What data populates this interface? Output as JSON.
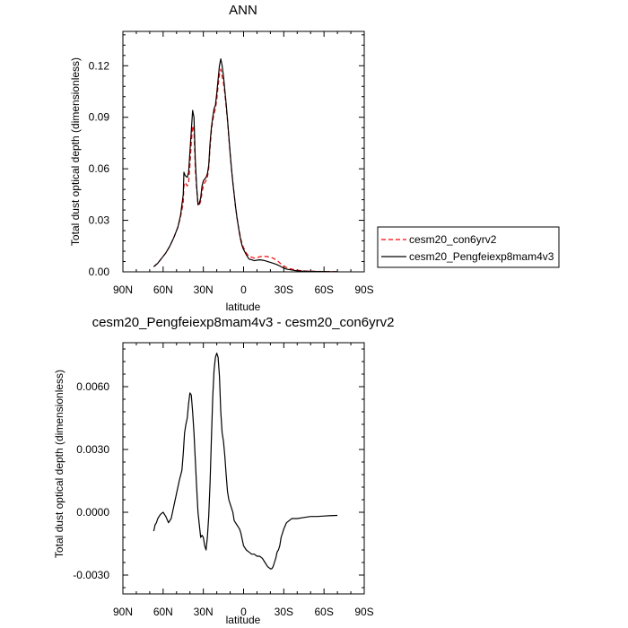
{
  "chart_data": [
    {
      "type": "line",
      "title": "ANN",
      "xlabel": "latitude",
      "ylabel": "Total dust optical depth (dimensionless)",
      "xlim": [
        90,
        -90
      ],
      "ylim": [
        0.0,
        0.14
      ],
      "x_ticks": [
        90,
        60,
        30,
        0,
        -30,
        -60,
        -90
      ],
      "x_tick_labels": [
        "90N",
        "60N",
        "30N",
        "0",
        "30S",
        "60S",
        "90S"
      ],
      "y_ticks": [
        0.0,
        0.03,
        0.06,
        0.09,
        0.12
      ],
      "y_tick_labels": [
        "0.00",
        "0.03",
        "0.06",
        "0.09",
        "0.12"
      ],
      "legend_position": "right",
      "series": [
        {
          "name": "cesm20_con6yrv2",
          "color": "#ff0000",
          "dash": "dashed",
          "x": [
            67,
            64,
            61,
            58,
            55,
            52,
            49,
            47,
            45,
            44.5,
            43.5,
            42,
            41,
            40,
            39,
            38,
            37,
            36,
            35,
            34,
            33,
            32,
            31,
            30,
            29,
            28,
            27,
            26,
            25,
            24,
            23,
            22,
            21,
            20,
            19,
            18,
            17,
            16,
            15,
            14,
            13,
            12,
            11,
            10,
            9,
            8,
            7,
            6,
            5,
            4,
            3,
            2,
            1,
            0,
            -2,
            -4,
            -6,
            -8,
            -10,
            -12,
            -14,
            -16,
            -18,
            -20,
            -22,
            -24,
            -26,
            -28,
            -30,
            -32,
            -35,
            -38,
            -42,
            -46,
            -50,
            -55,
            -60,
            -65,
            -70
          ],
          "y": [
            0.003,
            0.005,
            0.008,
            0.011,
            0.015,
            0.02,
            0.026,
            0.032,
            0.04,
            0.05,
            0.052,
            0.05,
            0.052,
            0.062,
            0.075,
            0.085,
            0.082,
            0.06,
            0.048,
            0.04,
            0.039,
            0.041,
            0.046,
            0.05,
            0.052,
            0.053,
            0.055,
            0.06,
            0.072,
            0.082,
            0.088,
            0.092,
            0.095,
            0.1,
            0.108,
            0.115,
            0.118,
            0.114,
            0.11,
            0.104,
            0.096,
            0.088,
            0.078,
            0.068,
            0.06,
            0.052,
            0.045,
            0.038,
            0.032,
            0.027,
            0.023,
            0.019,
            0.016,
            0.014,
            0.011,
            0.009,
            0.0085,
            0.008,
            0.0082,
            0.0088,
            0.009,
            0.009,
            0.0088,
            0.0085,
            0.008,
            0.007,
            0.006,
            0.0045,
            0.0035,
            0.0025,
            0.0018,
            0.0012,
            0.0008,
            0.0005,
            0.0004,
            0.0003,
            0.0002,
            0.0002,
            0.0001
          ]
        },
        {
          "name": "cesm20_Pengfeiexp8mam4v3",
          "color": "#000000",
          "dash": "solid",
          "x": [
            67,
            64,
            61,
            58,
            55,
            52,
            49,
            47,
            45,
            44.5,
            43.5,
            42,
            41,
            40,
            39,
            38,
            37,
            36,
            35,
            34,
            33,
            32,
            31,
            30,
            29,
            28,
            27,
            26,
            25,
            24,
            23,
            22,
            21,
            20,
            19,
            18,
            17,
            16,
            15,
            14,
            13,
            12,
            11,
            10,
            9,
            8,
            7,
            6,
            5,
            4,
            3,
            2,
            1,
            0,
            -2,
            -4,
            -6,
            -8,
            -10,
            -12,
            -14,
            -16,
            -18,
            -20,
            -22,
            -24,
            -26,
            -28,
            -30,
            -32,
            -35,
            -38,
            -42,
            -46,
            -50,
            -55,
            -60,
            -65,
            -70
          ],
          "y": [
            0.003,
            0.005,
            0.008,
            0.011,
            0.015,
            0.02,
            0.026,
            0.033,
            0.045,
            0.058,
            0.056,
            0.055,
            0.058,
            0.07,
            0.082,
            0.094,
            0.09,
            0.065,
            0.05,
            0.039,
            0.04,
            0.043,
            0.05,
            0.053,
            0.054,
            0.055,
            0.057,
            0.062,
            0.075,
            0.084,
            0.09,
            0.095,
            0.097,
            0.104,
            0.112,
            0.12,
            0.124,
            0.12,
            0.114,
            0.106,
            0.098,
            0.089,
            0.079,
            0.069,
            0.06,
            0.052,
            0.045,
            0.038,
            0.032,
            0.027,
            0.022,
            0.018,
            0.015,
            0.013,
            0.01,
            0.0075,
            0.007,
            0.0065,
            0.0068,
            0.007,
            0.0068,
            0.0065,
            0.006,
            0.0055,
            0.005,
            0.0045,
            0.0038,
            0.003,
            0.0022,
            0.0016,
            0.0012,
            0.0008,
            0.0005,
            0.0004,
            0.0003,
            0.0002,
            0.0002,
            0.0001,
            0.0001
          ]
        }
      ]
    },
    {
      "type": "line",
      "title": "cesm20_Pengfeiexp8mam4v3 - cesm20_con6yrv2",
      "xlabel": "latitude",
      "ylabel": "Total dust optical depth (dimensionless)",
      "xlim": [
        90,
        -90
      ],
      "ylim": [
        -0.0039,
        0.0081
      ],
      "x_ticks": [
        90,
        60,
        30,
        0,
        -30,
        -60,
        -90
      ],
      "x_tick_labels": [
        "90N",
        "60N",
        "30N",
        "0",
        "30S",
        "60S",
        "90S"
      ],
      "y_ticks": [
        -0.003,
        0.0,
        0.003,
        0.006
      ],
      "y_tick_labels": [
        "-0.0030",
        "0.0000",
        "0.0030",
        "0.0060"
      ],
      "series": [
        {
          "color": "#000000",
          "dash": "solid",
          "x": [
            67,
            66,
            65,
            64,
            62,
            60,
            58,
            56,
            54,
            52,
            50,
            48,
            46,
            45,
            44,
            43,
            42,
            41,
            40,
            39,
            38,
            37,
            36,
            35,
            34,
            33,
            32,
            31,
            30,
            29,
            28,
            27,
            26,
            25,
            24,
            23,
            22,
            21,
            20,
            19,
            18,
            17,
            16,
            15,
            14,
            13,
            12,
            11,
            10,
            9,
            8,
            7,
            6,
            5,
            4,
            3,
            2,
            1,
            0,
            -2,
            -4,
            -6,
            -8,
            -10,
            -12,
            -14,
            -16,
            -18,
            -20,
            -21,
            -22,
            -23,
            -24,
            -25,
            -26,
            -27,
            -28,
            -30,
            -32,
            -34,
            -36,
            -40,
            -45,
            -50,
            -55,
            -60,
            -65,
            -70
          ],
          "y": [
            -0.0009,
            -0.0006,
            -0.0005,
            -0.0003,
            -0.0001,
            0.0,
            -0.0002,
            -0.0005,
            -0.0003,
            0.0003,
            0.0009,
            0.0015,
            0.002,
            0.0028,
            0.0038,
            0.0042,
            0.0045,
            0.0052,
            0.0057,
            0.0056,
            0.0048,
            0.0038,
            0.0025,
            0.0012,
            0.0,
            -0.0006,
            -0.0012,
            -0.0011,
            -0.0012,
            -0.0016,
            -0.0018,
            -0.0012,
            -0.0002,
            0.0014,
            0.0035,
            0.0055,
            0.0068,
            0.0074,
            0.0076,
            0.0074,
            0.0065,
            0.0048,
            0.0038,
            0.0034,
            0.0027,
            0.0018,
            0.001,
            0.0006,
            0.0004,
            0.0002,
            0.0,
            -0.0004,
            -0.0005,
            -0.0006,
            -0.0007,
            -0.0008,
            -0.001,
            -0.0013,
            -0.0016,
            -0.0018,
            -0.0019,
            -0.002,
            -0.002,
            -0.0021,
            -0.0021,
            -0.0022,
            -0.0024,
            -0.0026,
            -0.0027,
            -0.0027,
            -0.0026,
            -0.0024,
            -0.0022,
            -0.0019,
            -0.0018,
            -0.0016,
            -0.0012,
            -0.0008,
            -0.0005,
            -0.0004,
            -0.0003,
            -0.0003,
            -0.00025,
            -0.0002,
            -0.0002,
            -0.00018,
            -0.00016,
            -0.00015
          ]
        }
      ]
    }
  ]
}
